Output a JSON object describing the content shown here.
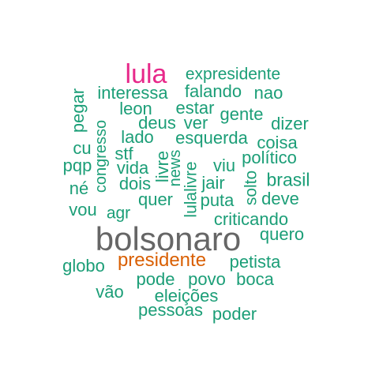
{
  "cloud": {
    "words": {
      "lula": "lula",
      "expresidente": "expresidente",
      "interessa": "interessa",
      "falando": "falando",
      "nao": "nao",
      "pegar": "pegar",
      "leon": "leon",
      "estar": "estar",
      "gente": "gente",
      "deus": "deus",
      "ver": "ver",
      "dizer": "dizer",
      "congresso": "congresso",
      "lado": "lado",
      "esquerda": "esquerda",
      "coisa": "coisa",
      "cu": "cu",
      "stf": "stf",
      "livre": "livre",
      "news": "news",
      "politico": "político",
      "pqp": "pqp",
      "vida": "vida",
      "lulalivre": "lulalivre",
      "viu": "viu",
      "brasil": "brasil",
      "ne": "né",
      "dois": "dois",
      "jair": "jair",
      "solto": "solto",
      "deve": "deve",
      "vou": "vou",
      "agr": "agr",
      "quer": "quer",
      "puta": "puta",
      "criticando": "criticando",
      "bolsonaro": "bolsonaro",
      "quero": "quero",
      "globo": "globo",
      "presidente": "presidente",
      "petista": "petista",
      "pode": "pode",
      "povo": "povo",
      "boca": "boca",
      "vao": "vão",
      "eleicoes": "eleições",
      "pessoas": "pessoas",
      "poder": "poder"
    },
    "colors": {
      "teal": "#1b9e77",
      "gray": "#666666",
      "pink": "#e7298a",
      "orange": "#d95f02"
    }
  }
}
